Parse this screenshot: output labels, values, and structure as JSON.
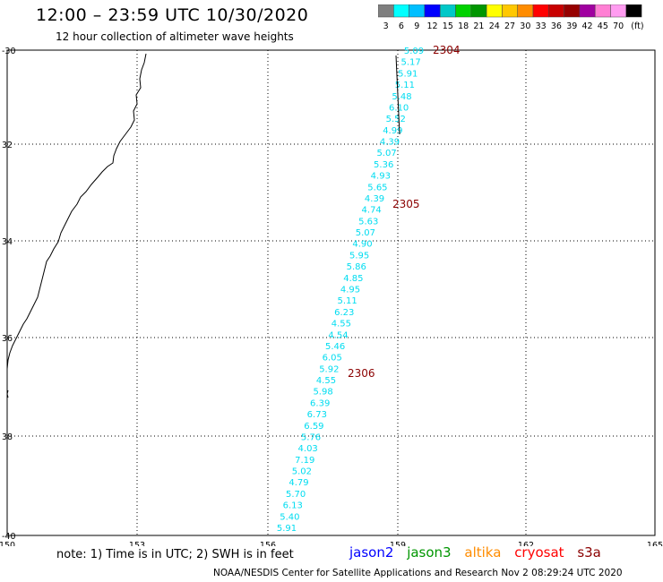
{
  "header": {
    "title": "12:00 – 23:59 UTC 10/30/2020",
    "subtitle": "12 hour collection of altimeter wave heights"
  },
  "color_scale": {
    "colors": [
      "#7f7f7f",
      "#00ffff",
      "#00bfff",
      "#0000ff",
      "#00c8c8",
      "#00d200",
      "#009600",
      "#ffff00",
      "#ffc800",
      "#ff8c00",
      "#ff0000",
      "#c80000",
      "#960000",
      "#a000a0",
      "#ff7fd4",
      "#ff9cf0",
      "#000000"
    ],
    "labels": [
      "3",
      "6",
      "9",
      "12",
      "15",
      "18",
      "21",
      "24",
      "27",
      "30",
      "33",
      "36",
      "39",
      "42",
      "45",
      "70",
      "(ft)"
    ]
  },
  "map": {
    "lat_labels": [
      "-30",
      "32",
      "34",
      "36",
      "38",
      "-40"
    ],
    "lon_labels": [
      "150",
      "153",
      "156",
      "159",
      "162",
      "165"
    ],
    "wave_color": "#00dcf0",
    "time_color": "#8b0000",
    "wave_heights": [
      "5.09",
      "5.17",
      "5.91",
      "5.11",
      "5.48",
      "6.10",
      "5.52",
      "4.99",
      "4.39",
      "5.07",
      "5.36",
      "4.93",
      "5.65",
      "4.39",
      "4.74",
      "5.63",
      "5.07",
      "4.90",
      "5.95",
      "5.86",
      "4.85",
      "4.95",
      "5.11",
      "6.23",
      "4.55",
      "4.54",
      "5.46",
      "6.05",
      "5.92",
      "4.55",
      "5.98",
      "6.39",
      "6.73",
      "6.59",
      "5.76",
      "4.03",
      "7.19",
      "5.02",
      "4.79",
      "5.70",
      "6.13",
      "5.40",
      "5.91"
    ],
    "time_labels": [
      "2304",
      "2305",
      "2306"
    ]
  },
  "footer": {
    "note": "note:  1) Time is in UTC;  2) SWH is in feet",
    "missions": [
      {
        "name": "jason2",
        "color": "#0000ff"
      },
      {
        "name": "jason3",
        "color": "#009600"
      },
      {
        "name": "altika",
        "color": "#ff8c00"
      },
      {
        "name": "cryosat",
        "color": "#ff0000"
      },
      {
        "name": "s3a",
        "color": "#8b0000"
      }
    ],
    "credit": "NOAA/NESDIS Center for Satellite Applications and Research    Nov  2 08:29:24 UTC 2020"
  }
}
